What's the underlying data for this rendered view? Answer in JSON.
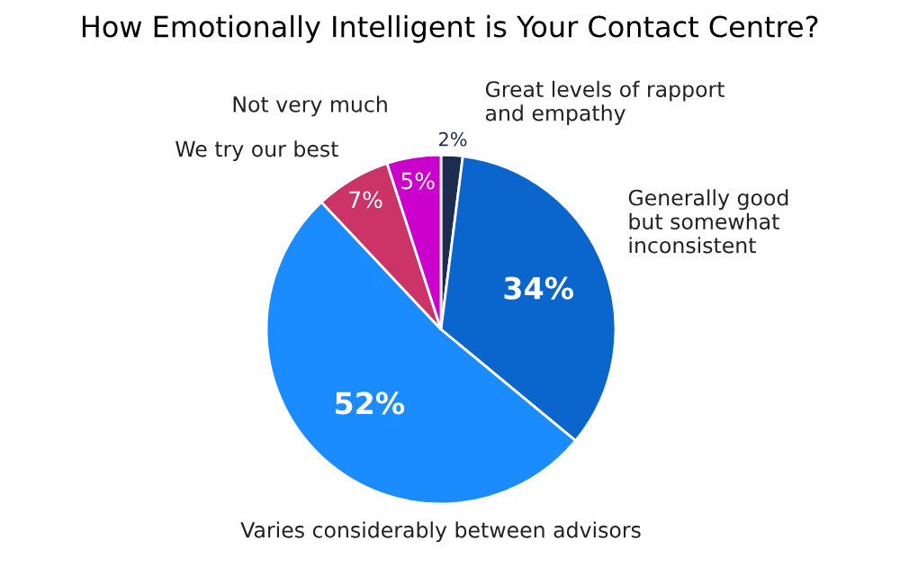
{
  "chart_data": {
    "type": "pie",
    "title": "How Emotionally Intelligent is Your Contact Centre?",
    "categories": [
      "Great levels of rapport\nand empathy",
      "Generally good\nbut somewhat\ninconsistent",
      "Varies considerably between advisors",
      "We try our best",
      "Not very much"
    ],
    "values": [
      2,
      34,
      52,
      7,
      5
    ],
    "value_labels": [
      "2%",
      "34%",
      "52%",
      "7%",
      "5%"
    ],
    "colors": [
      "#1c2d4f",
      "#0a66cc",
      "#1a8cff",
      "#cc3366",
      "#cc00cc"
    ]
  }
}
